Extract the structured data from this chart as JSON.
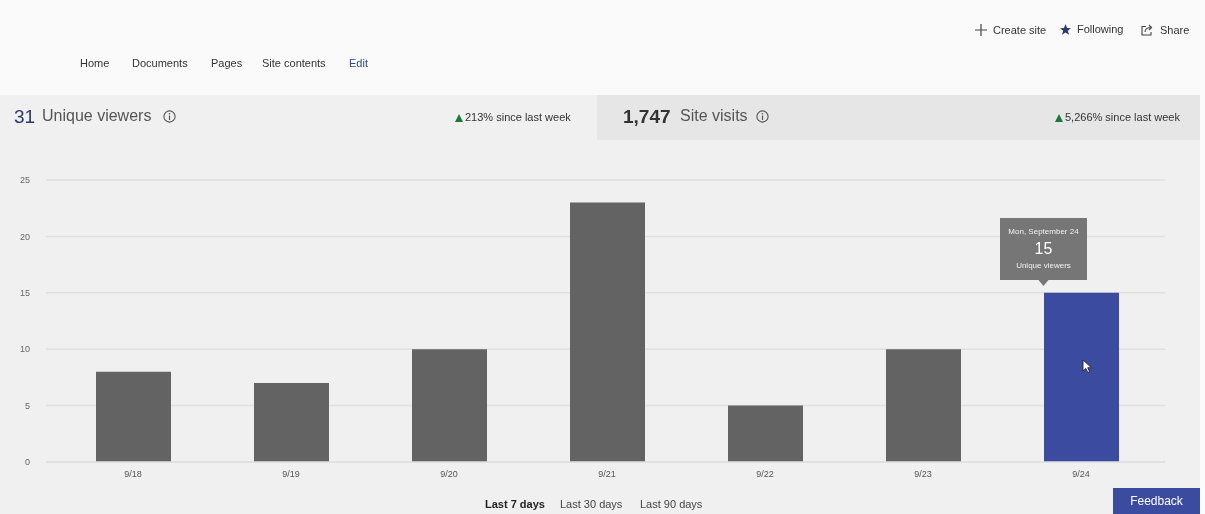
{
  "chart_data": {
    "type": "bar",
    "title": "Unique viewers",
    "categories": [
      "9/18",
      "9/19",
      "9/20",
      "9/21",
      "9/22",
      "9/23",
      "9/24"
    ],
    "values": [
      8,
      7,
      10,
      23,
      5,
      10,
      15
    ],
    "colors": [
      "#636363",
      "#636363",
      "#636363",
      "#636363",
      "#636363",
      "#636363",
      "#3b4ca0"
    ],
    "value_labels": [
      null,
      null,
      null,
      null,
      null,
      null,
      "15"
    ],
    "ylim": [
      0,
      25
    ],
    "yticks": [
      0,
      5,
      10,
      15,
      20,
      25
    ],
    "grid": "y",
    "annotations": [
      "Home",
      "Documents",
      "Pages",
      "Site contents",
      "Edit",
      "Create site",
      "Following",
      "Share",
      "31",
      "213% since last week",
      "1,747",
      "Site visits",
      "5,266% since last week",
      "Mon, September 24",
      "Unique viewers",
      "Last 7 days",
      "Last 30 days",
      "Last 90 days",
      "Feedback"
    ]
  }
}
